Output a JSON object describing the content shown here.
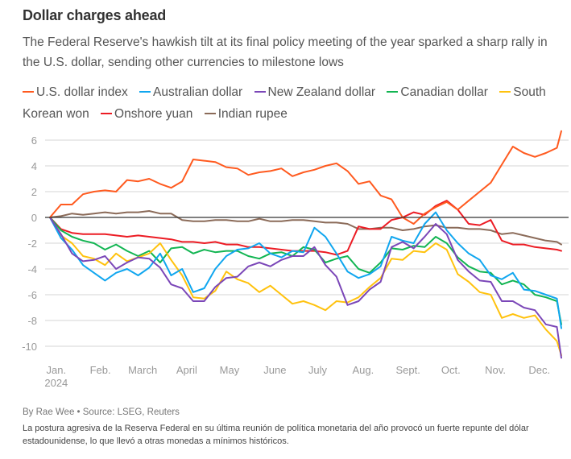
{
  "header": {
    "title": "Dollar charges ahead",
    "subtitle": "The Federal Reserve's hawkish tilt at its final policy meeting of the year sparked a sharp rally in the U.S. dollar, sending other currencies to milestone lows"
  },
  "footer": {
    "credit": "By Rae Wee • Source: LSEG, Reuters",
    "note": "La postura agresiva de la Reserva Federal en su última reunión de política monetaria del año provocó un fuerte repunte del dólar estadounidense, lo que llevó a otras monedas a mínimos históricos."
  },
  "chart_data": {
    "type": "line",
    "title": "Dollar charges ahead",
    "xlabel": "",
    "ylabel": "",
    "x_unit": "months since Jan. 1, 2024",
    "ylim": [
      -11,
      7
    ],
    "xlim": [
      0,
      11.6
    ],
    "yticks": [
      6,
      4,
      2,
      0,
      -2,
      -4,
      -6,
      -8,
      -10
    ],
    "xtick_labels": [
      {
        "x": 0.07,
        "label": "Jan.",
        "sublabel": "2024"
      },
      {
        "x": 1.07,
        "label": "Feb."
      },
      {
        "x": 2.03,
        "label": "March"
      },
      {
        "x": 3.03,
        "label": "April"
      },
      {
        "x": 4.0,
        "label": "May"
      },
      {
        "x": 5.03,
        "label": "June"
      },
      {
        "x": 6.0,
        "label": "July"
      },
      {
        "x": 7.03,
        "label": "Aug."
      },
      {
        "x": 8.05,
        "label": "Sept."
      },
      {
        "x": 9.02,
        "label": "Oct."
      },
      {
        "x": 10.03,
        "label": "Nov."
      },
      {
        "x": 11.03,
        "label": "Dec."
      }
    ],
    "grid": true,
    "zero_line": true,
    "legend_position": "top",
    "x": [
      0,
      0.25,
      0.5,
      0.75,
      1.0,
      1.25,
      1.5,
      1.75,
      2.0,
      2.25,
      2.5,
      2.75,
      3.0,
      3.25,
      3.5,
      3.75,
      4.0,
      4.25,
      4.5,
      4.75,
      5.0,
      5.25,
      5.5,
      5.75,
      6.0,
      6.25,
      6.5,
      6.75,
      7.0,
      7.25,
      7.5,
      7.75,
      8.0,
      8.25,
      8.5,
      8.75,
      9.0,
      9.25,
      9.5,
      9.75,
      10.0,
      10.25,
      10.5,
      10.75,
      11.0,
      11.25,
      11.5,
      11.6
    ],
    "series": [
      {
        "name": "U.S. dollar index",
        "color": "#ff5a1f",
        "values": [
          0,
          1.0,
          1.0,
          1.8,
          2.0,
          2.1,
          2.0,
          2.9,
          2.8,
          3.0,
          2.6,
          2.3,
          2.8,
          4.5,
          4.4,
          4.3,
          3.9,
          3.8,
          3.3,
          3.5,
          3.6,
          3.8,
          3.2,
          3.5,
          3.7,
          4.0,
          4.2,
          3.6,
          2.6,
          2.8,
          1.7,
          1.4,
          0.0,
          -0.5,
          0.3,
          0.8,
          1.2,
          0.6,
          1.3,
          2.0,
          2.7,
          4.1,
          5.5,
          5.0,
          4.7,
          5.0,
          5.4,
          6.7
        ]
      },
      {
        "name": "Australian dollar",
        "color": "#10a6ef",
        "values": [
          0,
          -1.6,
          -2.5,
          -3.7,
          -4.3,
          -4.9,
          -4.3,
          -4.0,
          -4.5,
          -3.9,
          -2.8,
          -4.5,
          -4.0,
          -5.8,
          -5.5,
          -4.0,
          -3.0,
          -2.5,
          -2.4,
          -2.0,
          -2.8,
          -3.1,
          -2.6,
          -2.7,
          -0.8,
          -1.5,
          -2.8,
          -4.2,
          -4.7,
          -4.4,
          -3.8,
          -1.5,
          -1.8,
          -2.0,
          -0.5,
          0.4,
          -1.0,
          -2.0,
          -2.8,
          -3.3,
          -4.5,
          -4.8,
          -4.3,
          -5.6,
          -5.7,
          -6.0,
          -6.3,
          -8.6
        ]
      },
      {
        "name": "New Zealand dollar",
        "color": "#7b47b8",
        "values": [
          0,
          -1.3,
          -2.8,
          -3.4,
          -3.3,
          -3.0,
          -4.0,
          -3.5,
          -3.1,
          -3.2,
          -3.9,
          -5.2,
          -5.5,
          -6.5,
          -6.5,
          -5.4,
          -4.7,
          -4.6,
          -3.8,
          -3.5,
          -3.8,
          -3.3,
          -3.0,
          -3.0,
          -2.3,
          -3.7,
          -4.6,
          -6.8,
          -6.5,
          -5.6,
          -5.0,
          -2.3,
          -1.9,
          -2.4,
          -1.5,
          -0.5,
          -1.3,
          -3.3,
          -4.2,
          -4.9,
          -5.0,
          -6.5,
          -6.5,
          -7.0,
          -7.2,
          -8.3,
          -8.5,
          -10.9
        ]
      },
      {
        "name": "Canadian dollar",
        "color": "#12b552",
        "values": [
          0,
          -1.0,
          -1.5,
          -1.8,
          -2.0,
          -2.5,
          -2.1,
          -2.6,
          -3.0,
          -2.6,
          -3.5,
          -2.4,
          -2.3,
          -2.8,
          -2.5,
          -2.7,
          -2.6,
          -2.6,
          -3.0,
          -3.2,
          -2.8,
          -2.7,
          -3.0,
          -2.3,
          -2.5,
          -3.5,
          -3.2,
          -3.0,
          -4.0,
          -4.3,
          -3.5,
          -2.4,
          -2.5,
          -2.2,
          -2.3,
          -1.5,
          -2.0,
          -3.1,
          -3.8,
          -4.2,
          -4.3,
          -5.2,
          -4.9,
          -5.2,
          -6.0,
          -6.2,
          -6.5,
          -8.3
        ]
      },
      {
        "name": "South Korean won",
        "color": "#ffc20e",
        "values": [
          0,
          -1.4,
          -2.0,
          -3.0,
          -3.2,
          -3.7,
          -2.8,
          -3.4,
          -3.1,
          -2.8,
          -2.0,
          -3.3,
          -4.5,
          -6.2,
          -6.3,
          -5.7,
          -4.2,
          -4.8,
          -5.1,
          -5.8,
          -5.3,
          -6.0,
          -6.7,
          -6.5,
          -6.8,
          -7.2,
          -6.5,
          -6.6,
          -6.2,
          -5.4,
          -4.7,
          -3.2,
          -3.3,
          -2.6,
          -2.7,
          -2.0,
          -2.5,
          -4.4,
          -5.0,
          -5.8,
          -6.0,
          -7.8,
          -7.5,
          -7.8,
          -7.6,
          -8.7,
          -9.6,
          -10.7
        ]
      },
      {
        "name": "Onshore yuan",
        "color": "#ec1c24",
        "values": [
          0,
          -0.9,
          -1.2,
          -1.3,
          -1.3,
          -1.3,
          -1.4,
          -1.5,
          -1.4,
          -1.5,
          -1.6,
          -1.7,
          -1.9,
          -1.9,
          -2.0,
          -1.9,
          -2.1,
          -2.1,
          -2.3,
          -2.3,
          -2.4,
          -2.5,
          -2.6,
          -2.6,
          -2.6,
          -2.7,
          -2.9,
          -2.6,
          -0.7,
          -0.9,
          -0.9,
          -0.2,
          0.0,
          0.4,
          0.2,
          0.9,
          1.3,
          0.6,
          -0.5,
          -0.6,
          -0.2,
          -1.8,
          -2.1,
          -2.1,
          -2.3,
          -2.4,
          -2.5,
          -2.6
        ]
      },
      {
        "name": "Indian rupee",
        "color": "#8b6b59",
        "values": [
          0,
          0.1,
          0.3,
          0.2,
          0.3,
          0.4,
          0.3,
          0.4,
          0.4,
          0.5,
          0.3,
          0.3,
          -0.2,
          -0.3,
          -0.3,
          -0.2,
          -0.2,
          -0.3,
          -0.3,
          -0.1,
          -0.3,
          -0.3,
          -0.2,
          -0.2,
          -0.3,
          -0.4,
          -0.4,
          -0.5,
          -0.9,
          -0.9,
          -0.8,
          -0.8,
          -1.0,
          -0.9,
          -0.7,
          -0.6,
          -0.8,
          -0.8,
          -0.9,
          -0.9,
          -1.0,
          -1.3,
          -1.2,
          -1.4,
          -1.6,
          -1.8,
          -1.9,
          -2.1
        ]
      }
    ]
  }
}
